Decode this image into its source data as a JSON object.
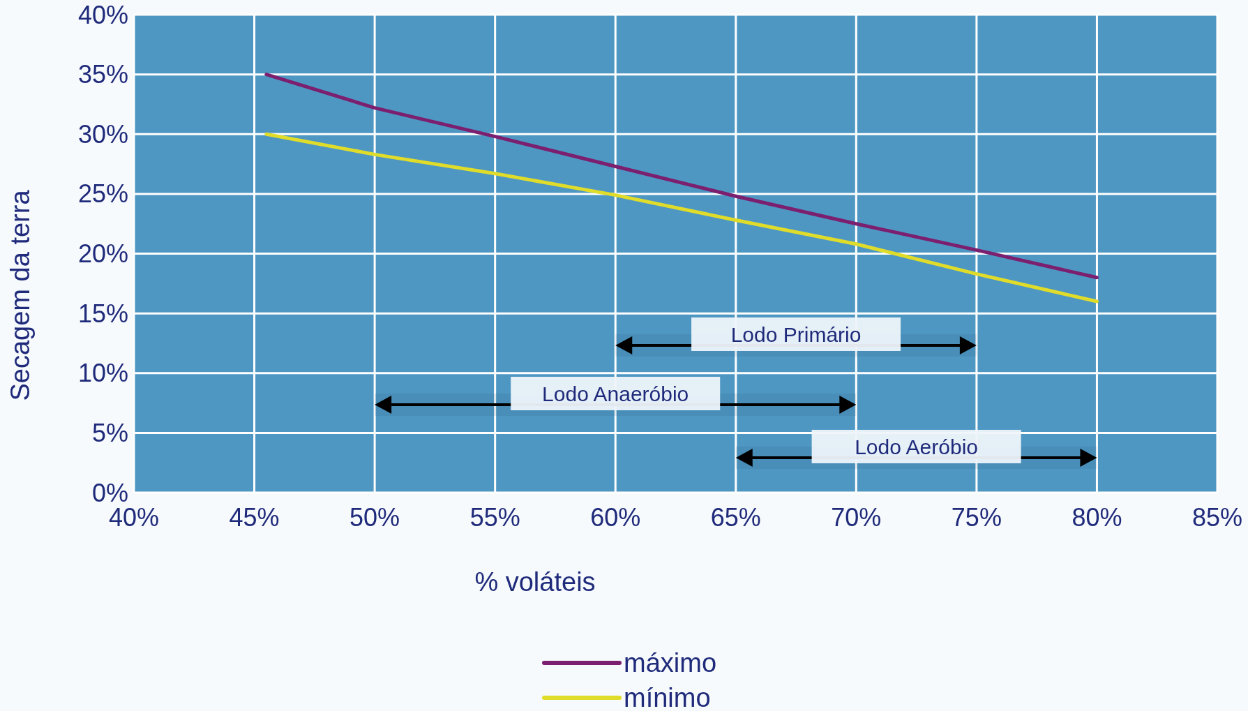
{
  "chart_data": {
    "type": "line",
    "xlabel": "% voláteis",
    "ylabel": "Secagem da terra",
    "xlim": [
      40,
      85
    ],
    "xticks": [
      {
        "value": 40,
        "label": "40%"
      },
      {
        "value": 45,
        "label": "45%"
      },
      {
        "value": 50,
        "label": "50%"
      },
      {
        "value": 55,
        "label": "55%"
      },
      {
        "value": 60,
        "label": "60%"
      },
      {
        "value": 65,
        "label": "65%"
      },
      {
        "value": 70,
        "label": "70%"
      },
      {
        "value": 75,
        "label": "75%"
      },
      {
        "value": 80,
        "label": "80%"
      },
      {
        "value": 85,
        "label": "85%"
      }
    ],
    "ylim": [
      0,
      40
    ],
    "yticks": [
      {
        "value": 0,
        "label": "0%"
      },
      {
        "value": 5,
        "label": "5%"
      },
      {
        "value": 10,
        "label": "10%"
      },
      {
        "value": 15,
        "label": "15%"
      },
      {
        "value": 20,
        "label": "20%"
      },
      {
        "value": 25,
        "label": "25%"
      },
      {
        "value": 30,
        "label": "30%"
      },
      {
        "value": 35,
        "label": "35%"
      },
      {
        "value": 40,
        "label": "40%"
      }
    ],
    "x": [
      45.5,
      50,
      55,
      60,
      65,
      70,
      75,
      80
    ],
    "series": [
      {
        "name": "máximo",
        "color": "#7b1f6e",
        "values": [
          35,
          32.2,
          29.8,
          27.3,
          24.8,
          22.5,
          20.3,
          18
        ]
      },
      {
        "name": "mínimo",
        "color": "#e0dc2a",
        "values": [
          30,
          28.3,
          26.7,
          24.9,
          22.8,
          20.8,
          18.3,
          16
        ]
      }
    ],
    "bands": [
      {
        "axis": "x",
        "from": 60,
        "to": 75,
        "label": "Lodo Primário"
      },
      {
        "axis": "x",
        "from": 50,
        "to": 70,
        "label": "Lodo Anaeróbio"
      },
      {
        "axis": "x",
        "from": 65,
        "to": 80,
        "label": "Lodo Aeróbio"
      }
    ],
    "grid": true,
    "legend": "bottom",
    "marker": "none",
    "line_style": "solid"
  }
}
